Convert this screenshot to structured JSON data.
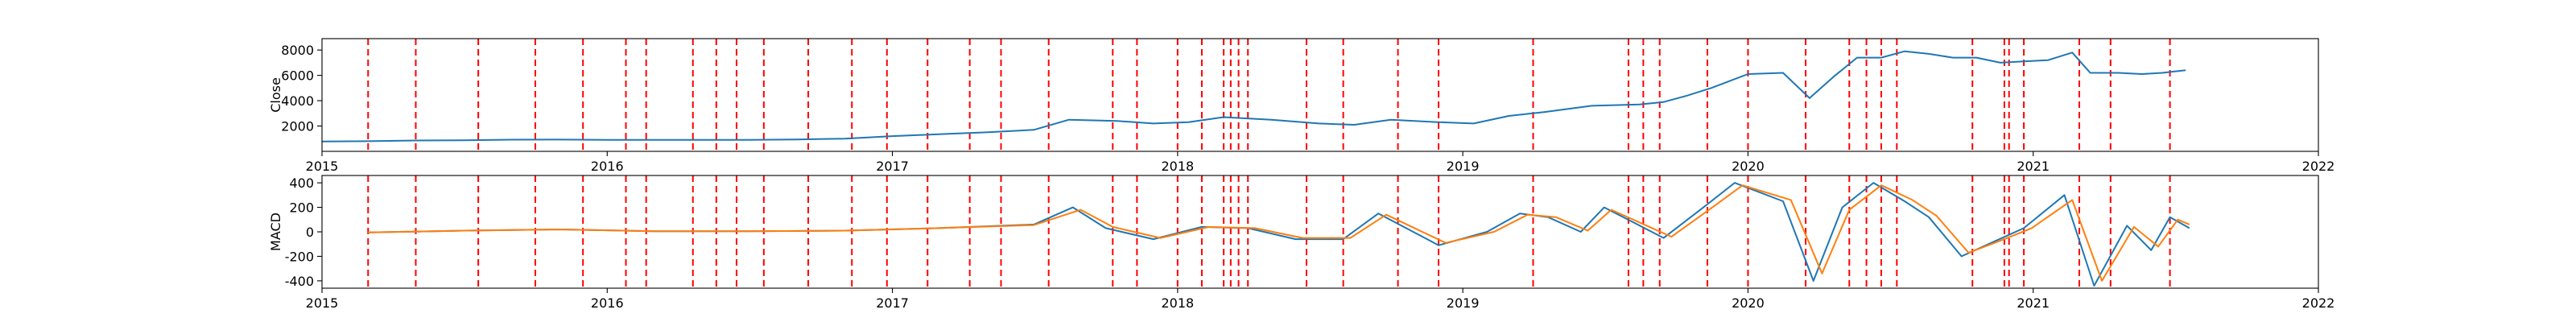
{
  "chart_data": [
    {
      "type": "line",
      "title": "",
      "xlabel": "",
      "ylabel": "Close",
      "x_ticks": [
        "2015",
        "2016",
        "2017",
        "2018",
        "2019",
        "2020",
        "2021",
        "2022"
      ],
      "y_ticks": [
        "2000",
        "4000",
        "6000",
        "8000"
      ],
      "xlim": [
        "2015",
        "2022"
      ],
      "ylim": [
        0,
        8900
      ],
      "grid": false,
      "series": [
        {
          "color": "#1f77b4",
          "points": [
            [
              "2015-01-01",
              780
            ],
            [
              "2015-03-01",
              800
            ],
            [
              "2015-05-01",
              860
            ],
            [
              "2015-07-01",
              880
            ],
            [
              "2015-09-01",
              920
            ],
            [
              "2015-11-01",
              930
            ],
            [
              "2016-01-01",
              910
            ],
            [
              "2016-03-01",
              900
            ],
            [
              "2016-05-01",
              900
            ],
            [
              "2016-07-01",
              910
            ],
            [
              "2016-09-01",
              940
            ],
            [
              "2016-11-01",
              1000
            ],
            [
              "2017-01-01",
              1200
            ],
            [
              "2017-03-01",
              1350
            ],
            [
              "2017-05-01",
              1500
            ],
            [
              "2017-07-01",
              1700
            ],
            [
              "2017-08-15",
              2500
            ],
            [
              "2017-10-15",
              2400
            ],
            [
              "2017-12-01",
              2200
            ],
            [
              "2018-01-15",
              2300
            ],
            [
              "2018-03-01",
              2700
            ],
            [
              "2018-05-01",
              2500
            ],
            [
              "2018-07-01",
              2200
            ],
            [
              "2018-08-15",
              2100
            ],
            [
              "2018-10-01",
              2500
            ],
            [
              "2018-12-01",
              2300
            ],
            [
              "2019-01-15",
              2200
            ],
            [
              "2019-03-01",
              2800
            ],
            [
              "2019-04-15",
              3100
            ],
            [
              "2019-06-15",
              3600
            ],
            [
              "2019-08-15",
              3700
            ],
            [
              "2019-09-15",
              3900
            ],
            [
              "2019-10-15",
              4400
            ],
            [
              "2019-11-15",
              5000
            ],
            [
              "2020-01-01",
              6100
            ],
            [
              "2020-02-15",
              6200
            ],
            [
              "2020-03-20",
              4200
            ],
            [
              "2020-04-20",
              5900
            ],
            [
              "2020-05-20",
              7400
            ],
            [
              "2020-06-20",
              7400
            ],
            [
              "2020-07-20",
              7900
            ],
            [
              "2020-08-20",
              7700
            ],
            [
              "2020-09-20",
              7400
            ],
            [
              "2020-10-20",
              7400
            ],
            [
              "2020-11-20",
              7000
            ],
            [
              "2020-12-20",
              7100
            ],
            [
              "2021-01-20",
              7200
            ],
            [
              "2021-02-20",
              7800
            ],
            [
              "2021-03-15",
              6200
            ],
            [
              "2021-04-20",
              6200
            ],
            [
              "2021-05-20",
              6100
            ],
            [
              "2021-06-15",
              6200
            ],
            [
              "2021-07-15",
              6400
            ]
          ]
        }
      ]
    },
    {
      "type": "line",
      "title": "",
      "xlabel": "",
      "ylabel": "MACD",
      "x_ticks": [
        "2015",
        "2016",
        "2017",
        "2018",
        "2019",
        "2020",
        "2021",
        "2022"
      ],
      "y_ticks": [
        "-400",
        "-200",
        "0",
        "200",
        "400"
      ],
      "xlim": [
        "2015",
        "2022"
      ],
      "ylim": [
        -460,
        460
      ],
      "grid": false,
      "series": [
        {
          "color": "#1f77b4",
          "points": [
            [
              "2015-03-01",
              -5
            ],
            [
              "2015-07-01",
              10
            ],
            [
              "2015-11-01",
              20
            ],
            [
              "2016-03-01",
              5
            ],
            [
              "2016-07-01",
              5
            ],
            [
              "2016-11-01",
              10
            ],
            [
              "2017-03-01",
              30
            ],
            [
              "2017-07-01",
              60
            ],
            [
              "2017-08-20",
              200
            ],
            [
              "2017-10-01",
              30
            ],
            [
              "2017-12-01",
              -60
            ],
            [
              "2018-02-01",
              40
            ],
            [
              "2018-04-01",
              30
            ],
            [
              "2018-06-01",
              -60
            ],
            [
              "2018-08-01",
              -60
            ],
            [
              "2018-09-15",
              150
            ],
            [
              "2018-12-01",
              -110
            ],
            [
              "2019-02-01",
              0
            ],
            [
              "2019-03-15",
              150
            ],
            [
              "2019-04-20",
              120
            ],
            [
              "2019-06-01",
              0
            ],
            [
              "2019-07-01",
              200
            ],
            [
              "2019-09-15",
              -50
            ],
            [
              "2019-11-01",
              180
            ],
            [
              "2019-12-15",
              400
            ],
            [
              "2020-02-15",
              250
            ],
            [
              "2020-03-25",
              -400
            ],
            [
              "2020-05-01",
              200
            ],
            [
              "2020-06-10",
              400
            ],
            [
              "2020-07-20",
              250
            ],
            [
              "2020-08-20",
              120
            ],
            [
              "2020-10-01",
              -200
            ],
            [
              "2020-11-15",
              -70
            ],
            [
              "2020-12-20",
              30
            ],
            [
              "2021-02-10",
              300
            ],
            [
              "2021-03-20",
              -440
            ],
            [
              "2021-05-01",
              50
            ],
            [
              "2021-06-01",
              -150
            ],
            [
              "2021-06-25",
              120
            ],
            [
              "2021-07-20",
              30
            ]
          ]
        },
        {
          "color": "#ff7f0e",
          "points": [
            [
              "2015-03-01",
              -5
            ],
            [
              "2015-07-01",
              10
            ],
            [
              "2015-11-01",
              20
            ],
            [
              "2016-03-01",
              5
            ],
            [
              "2016-07-01",
              5
            ],
            [
              "2016-11-01",
              10
            ],
            [
              "2017-03-01",
              30
            ],
            [
              "2017-07-01",
              55
            ],
            [
              "2017-08-30",
              180
            ],
            [
              "2017-10-10",
              40
            ],
            [
              "2017-12-10",
              -50
            ],
            [
              "2018-02-10",
              40
            ],
            [
              "2018-04-10",
              30
            ],
            [
              "2018-06-10",
              -50
            ],
            [
              "2018-08-10",
              -50
            ],
            [
              "2018-09-25",
              140
            ],
            [
              "2018-12-10",
              -90
            ],
            [
              "2019-02-10",
              0
            ],
            [
              "2019-03-25",
              140
            ],
            [
              "2019-04-30",
              120
            ],
            [
              "2019-06-10",
              10
            ],
            [
              "2019-07-10",
              180
            ],
            [
              "2019-09-25",
              -40
            ],
            [
              "2019-11-10",
              170
            ],
            [
              "2019-12-25",
              380
            ],
            [
              "2020-02-25",
              260
            ],
            [
              "2020-04-05",
              -340
            ],
            [
              "2020-05-10",
              180
            ],
            [
              "2020-06-20",
              380
            ],
            [
              "2020-07-30",
              260
            ],
            [
              "2020-08-30",
              130
            ],
            [
              "2020-10-10",
              -170
            ],
            [
              "2020-11-25",
              -60
            ],
            [
              "2020-12-30",
              30
            ],
            [
              "2021-02-20",
              260
            ],
            [
              "2021-03-30",
              -400
            ],
            [
              "2021-05-10",
              40
            ],
            [
              "2021-06-10",
              -120
            ],
            [
              "2021-07-05",
              100
            ],
            [
              "2021-07-20",
              60
            ]
          ]
        }
      ]
    }
  ],
  "event_lines": {
    "color": "#ff0000",
    "dates": [
      "2015-03-01",
      "2015-05-01",
      "2015-07-20",
      "2015-10-01",
      "2015-12-01",
      "2016-01-25",
      "2016-02-20",
      "2016-04-20",
      "2016-05-20",
      "2016-06-15",
      "2016-07-20",
      "2016-09-15",
      "2016-11-10",
      "2016-12-25",
      "2017-02-15",
      "2017-04-10",
      "2017-05-20",
      "2017-07-20",
      "2017-10-10",
      "2017-11-10",
      "2018-01-01",
      "2018-02-01",
      "2018-03-01",
      "2018-03-10",
      "2018-03-20",
      "2018-04-01",
      "2018-06-15",
      "2018-08-01",
      "2018-10-10",
      "2018-12-01",
      "2019-04-01",
      "2019-08-01",
      "2019-08-20",
      "2019-09-10",
      "2019-11-10",
      "2020-01-01",
      "2020-03-15",
      "2020-05-10",
      "2020-06-01",
      "2020-06-20",
      "2020-07-10",
      "2020-10-15",
      "2020-11-25",
      "2020-12-01",
      "2020-12-20",
      "2021-03-01",
      "2021-04-10",
      "2021-06-25"
    ]
  }
}
